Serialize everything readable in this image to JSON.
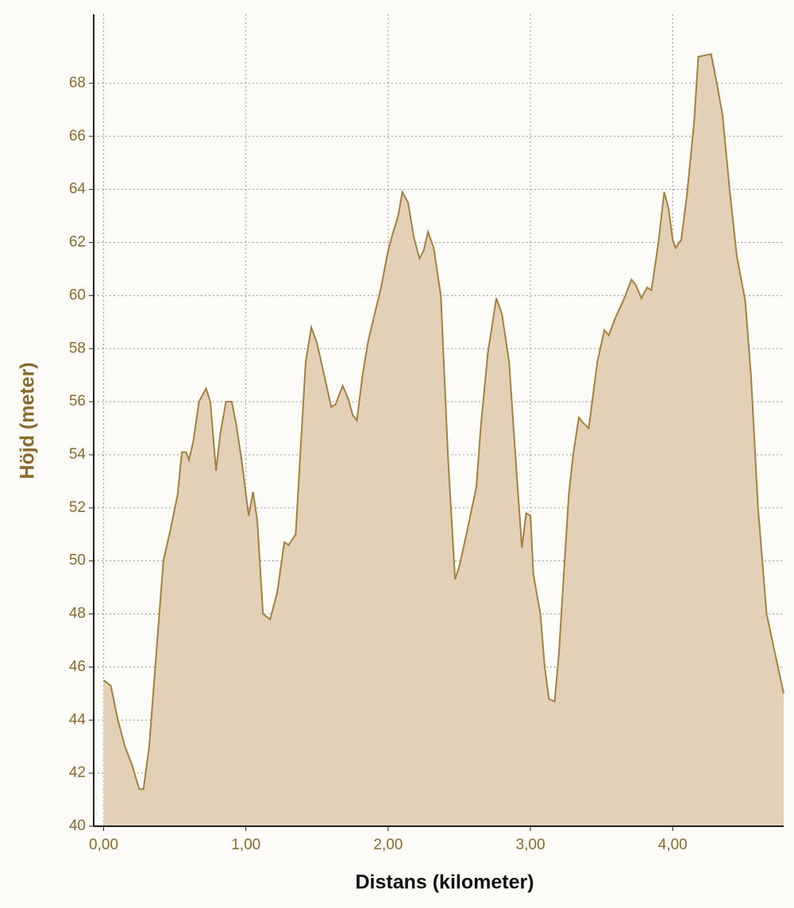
{
  "chart_data": {
    "type": "area",
    "xlabel": "Distans (kilometer)",
    "ylabel": "Höjd (meter)",
    "x": [
      0,
      0.05,
      0.1,
      0.15,
      0.2,
      0.25,
      0.28,
      0.32,
      0.37,
      0.42,
      0.47,
      0.52,
      0.55,
      0.58,
      0.6,
      0.63,
      0.67,
      0.72,
      0.75,
      0.79,
      0.82,
      0.86,
      0.9,
      0.93,
      0.97,
      1.0,
      1.02,
      1.05,
      1.08,
      1.12,
      1.17,
      1.22,
      1.27,
      1.3,
      1.35,
      1.38,
      1.42,
      1.46,
      1.5,
      1.55,
      1.6,
      1.63,
      1.68,
      1.72,
      1.75,
      1.78,
      1.82,
      1.86,
      1.9,
      1.95,
      2.0,
      2.03,
      2.07,
      2.1,
      2.14,
      2.18,
      2.22,
      2.25,
      2.28,
      2.32,
      2.37,
      2.42,
      2.47,
      2.5,
      2.55,
      2.62,
      2.65,
      2.7,
      2.76,
      2.8,
      2.85,
      2.9,
      2.94,
      2.97,
      3.0,
      3.02,
      3.07,
      3.1,
      3.13,
      3.17,
      3.2,
      3.24,
      3.27,
      3.3,
      3.34,
      3.37,
      3.41,
      3.47,
      3.52,
      3.55,
      3.6,
      3.66,
      3.71,
      3.74,
      3.78,
      3.82,
      3.85,
      3.9,
      3.94,
      3.97,
      4.0,
      4.02,
      4.06,
      4.1,
      4.15,
      4.18,
      4.27,
      4.31,
      4.35,
      4.4,
      4.45,
      4.51,
      4.55,
      4.6,
      4.66,
      4.72,
      4.78
    ],
    "values": [
      45.5,
      45.3,
      44,
      43,
      42.3,
      41.4,
      41.4,
      43,
      46.5,
      50,
      51.2,
      52.5,
      54.1,
      54.1,
      53.8,
      54.5,
      56,
      56.5,
      56,
      53.4,
      54.8,
      56,
      56,
      55.2,
      53.8,
      52.5,
      51.7,
      52.6,
      51.5,
      48,
      47.8,
      48.8,
      50.7,
      50.6,
      51,
      53.8,
      57.5,
      58.8,
      58.2,
      57,
      55.8,
      55.9,
      56.6,
      56.1,
      55.5,
      55.3,
      57,
      58.3,
      59.2,
      60.3,
      61.7,
      62.3,
      63,
      63.9,
      63.5,
      62.2,
      61.4,
      61.7,
      62.4,
      61.8,
      60,
      54,
      49.3,
      49.8,
      51,
      52.8,
      55,
      57.8,
      59.9,
      59.3,
      57.5,
      53.5,
      50.5,
      51.8,
      51.7,
      49.5,
      48,
      46,
      44.8,
      44.7,
      46.5,
      50,
      52.5,
      54,
      55.4,
      55.2,
      55,
      57.5,
      58.7,
      58.5,
      59.2,
      59.9,
      60.6,
      60.4,
      59.9,
      60.3,
      60.2,
      62,
      63.9,
      63.3,
      62.1,
      61.8,
      62.1,
      63.8,
      66.5,
      69,
      69.1,
      68,
      66.8,
      64,
      61.5,
      59.8,
      57,
      52,
      48,
      46.5,
      45
    ],
    "color": "#a5803f",
    "fill": "#e3d1b7",
    "xlim": [
      -0.07,
      4.78
    ],
    "ylim": [
      40,
      70.6
    ],
    "xticks": [
      {
        "value": 0,
        "label": "0,00"
      },
      {
        "value": 1,
        "label": "1,00"
      },
      {
        "value": 2,
        "label": "2,00"
      },
      {
        "value": 3,
        "label": "3,00"
      },
      {
        "value": 4,
        "label": "4,00"
      }
    ],
    "yticks": [
      40,
      42,
      44,
      46,
      48,
      50,
      52,
      54,
      56,
      58,
      60,
      62,
      64,
      66,
      68
    ],
    "grid": true
  }
}
